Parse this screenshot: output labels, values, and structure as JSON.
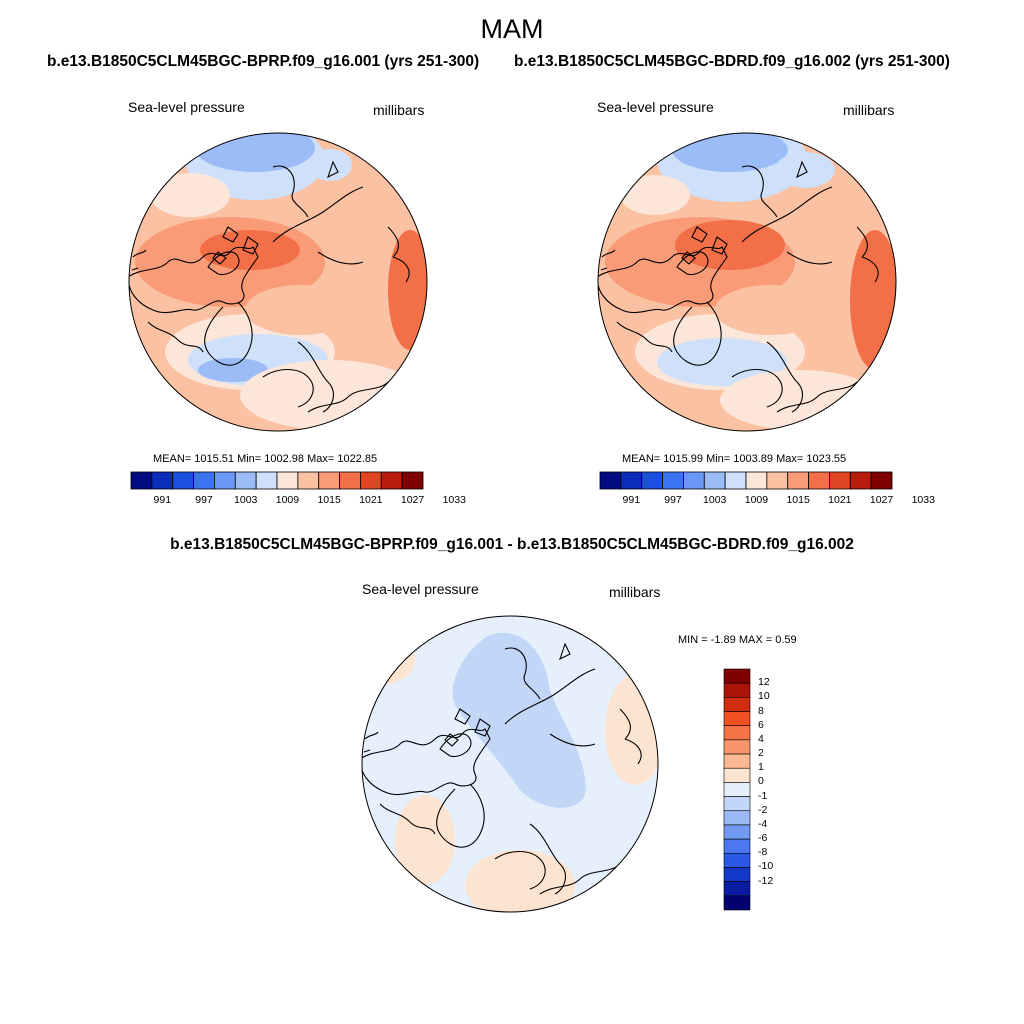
{
  "figure": {
    "title": "MAM",
    "left_case": "b.e13.B1850C5CLM45BGC-BPRP.f09_g16.001 (yrs 251-300)",
    "right_case": "b.e13.B1850C5CLM45BGC-BDRD.f09_g16.002 (yrs 251-300)",
    "diff_title": "b.e13.B1850C5CLM45BGC-BPRP.f09_g16.001 - b.e13.B1850C5CLM45BGC-BDRD.f09_g16.002"
  },
  "panels": {
    "left": {
      "variable": "Sea-level pressure",
      "units": "millibars",
      "stats": "MEAN= 1015.51   Min= 1002.98   Max= 1022.85"
    },
    "right": {
      "variable": "Sea-level pressure",
      "units": "millibars",
      "stats": "MEAN= 1015.99   Min= 1003.89   Max= 1023.55"
    },
    "diff": {
      "variable": "Sea-level pressure",
      "units": "millibars",
      "minmax": "MIN =  -1.89 MAX =   0.59"
    }
  },
  "colorbars": {
    "abs_colors": [
      "#000c80",
      "#0a2dbb",
      "#1b4fe0",
      "#3a74f2",
      "#6b97f5",
      "#9bbcf7",
      "#cfe0fa",
      "#fce6d9",
      "#fbc1a3",
      "#f99b77",
      "#f26f48",
      "#de4623",
      "#b81c0d",
      "#800000"
    ],
    "abs_labels": [
      "991",
      "997",
      "1003",
      "1009",
      "1015",
      "1021",
      "1027",
      "1033"
    ],
    "diff_colors": [
      "#800000",
      "#ab1308",
      "#d12c0f",
      "#ef5024",
      "#f67345",
      "#f9956d",
      "#fbb995",
      "#fde4d1",
      "#e6effc",
      "#c2d6f8",
      "#9ab9f5",
      "#739af3",
      "#4b78ef",
      "#2a59e5",
      "#1239c8",
      "#0a1ca2",
      "#00006f"
    ],
    "diff_labels": [
      "12",
      "10",
      "8",
      "6",
      "4",
      "2",
      "1",
      "0",
      "-1",
      "-2",
      "-4",
      "-6",
      "-8",
      "-10",
      "-12"
    ]
  }
}
